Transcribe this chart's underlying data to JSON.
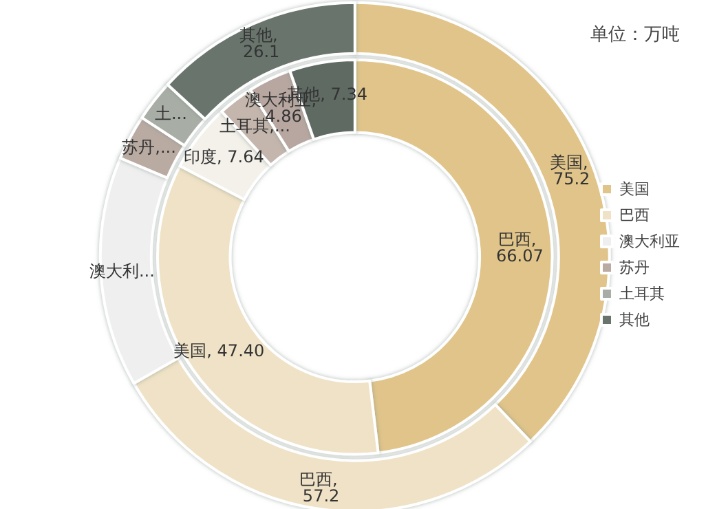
{
  "chart_data": [
    {
      "type": "donut",
      "title": "单位：万吨",
      "legend": "right",
      "categories": [
        "美国",
        "巴西",
        "澳大利亚",
        "苏丹",
        "土耳其",
        "其他"
      ],
      "values": [
        75.2,
        57.2,
        29,
        5.7,
        5.2,
        26.1
      ],
      "colors": [
        "#e0c48a",
        "#efe2c6",
        "#efefef",
        "#b9aba2",
        "#a8aea6",
        "#69746c"
      ],
      "value_labels": [
        "美国, 75.2",
        "巴西, 57.2",
        "澳大利...",
        "苏丹,...",
        "土...",
        "其他, 26.1"
      ]
    },
    {
      "type": "donut",
      "categories": [
        null,
        null,
        null,
        null,
        null,
        null
      ],
      "values": [
        66.07,
        47.4,
        7.64,
        4,
        4.86,
        7.34
      ],
      "colors": [
        "#e0c48a",
        "#efe2c6",
        "#f3f1ea",
        "#c4b6ad",
        "#b8a7a1",
        "#5f6a63"
      ],
      "value_labels": [
        "巴西, 66.07",
        "美国, 47.40",
        "印度, 7.64",
        "土耳其,...",
        "澳大利亚, 4.86",
        "其他, 7.34"
      ]
    }
  ]
}
